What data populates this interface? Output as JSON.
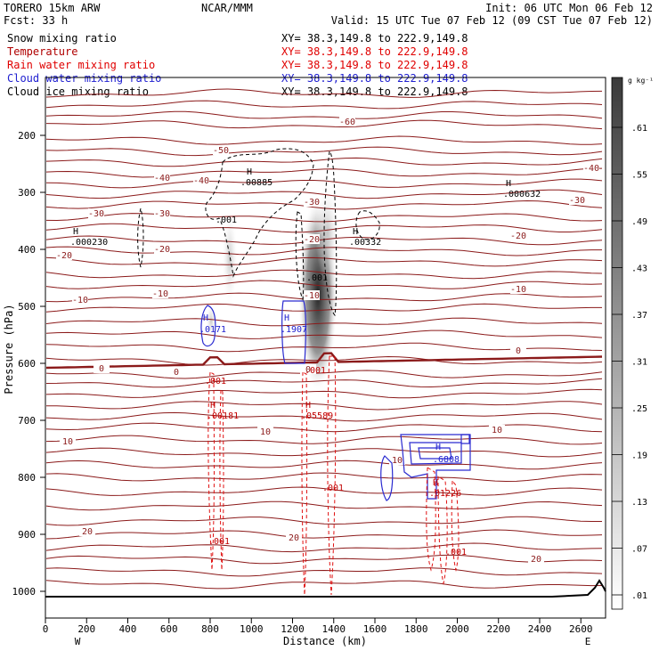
{
  "header": {
    "model": "TORERO  15km ARW",
    "center": "NCAR/MMM",
    "init": "Init: 06 UTC Mon 06 Feb 12",
    "fcst": "Fcst:   33 h",
    "valid": "Valid: 15 UTC Tue 07 Feb 12 (09 CST Tue 07 Feb 12)"
  },
  "legend": [
    {
      "label": "Snow mixing ratio",
      "xs": "XY=  38.3,149.8 to 222.9,149.8",
      "color": "#000000"
    },
    {
      "label": "Temperature",
      "xs": "XY=  38.3,149.8 to 222.9,149.8",
      "color": "#b00000"
    },
    {
      "label": "Rain water mixing ratio",
      "xs": "XY=  38.3,149.8 to 222.9,149.8",
      "color": "#e00000"
    },
    {
      "label": "Cloud water mixing ratio",
      "xs": "XY=  38.3,149.8 to 222.9,149.8",
      "color": "#2020d0"
    },
    {
      "label": "Cloud ice mixing ratio",
      "xs": "XY=  38.3,149.8 to 222.9,149.8",
      "color": "#000000"
    }
  ],
  "colorbar": {
    "unit": "g kg⁻¹",
    "ticks": [
      ".61",
      ".55",
      ".49",
      ".43",
      ".37",
      ".31",
      ".25",
      ".19",
      ".13",
      ".07",
      ".01"
    ]
  },
  "chart_data": {
    "type": "cross-section contour",
    "xlabel": "Distance (km)",
    "ylabel": "Pressure (hPa)",
    "x_ticks": [
      0,
      200,
      400,
      600,
      800,
      1000,
      1200,
      1400,
      1600,
      1800,
      2000,
      2200,
      2400,
      2600
    ],
    "y_ticks": [
      200,
      300,
      400,
      500,
      600,
      700,
      800,
      900,
      1000
    ],
    "x_ends": [
      "W",
      "E"
    ],
    "temperature_labels": [
      "-60",
      "-50",
      "-40",
      "-30",
      "-20",
      "-10",
      "0",
      "10",
      "20"
    ],
    "rain_labels": [
      ".001",
      ".001",
      ".001",
      ".001",
      ".001"
    ],
    "snow_labels": [
      ".001",
      ".001"
    ],
    "maxima": [
      {
        "field": "snow",
        "label": "H",
        "value": ".00885",
        "x_km": 930,
        "p_hpa": 285
      },
      {
        "field": "snow",
        "label": "H",
        "value": ".000632",
        "x_km": 2210,
        "p_hpa": 305
      },
      {
        "field": "snow",
        "label": "H",
        "value": ".000230",
        "x_km": 120,
        "p_hpa": 380
      },
      {
        "field": "snow",
        "label": "H",
        "value": ".00332",
        "x_km": 1570,
        "p_hpa": 380
      },
      {
        "field": "cloud_water",
        "label": "H",
        "value": ".0171",
        "x_km": 760,
        "p_hpa": 535
      },
      {
        "field": "cloud_water",
        "label": "H",
        "value": ".1907",
        "x_km": 1270,
        "p_hpa": 535
      },
      {
        "field": "cloud_water",
        "label": "H",
        "value": ".6808",
        "x_km": 1940,
        "p_hpa": 770
      },
      {
        "field": "rain",
        "label": "H",
        "value": ".00181",
        "x_km": 800,
        "p_hpa": 675
      },
      {
        "field": "rain",
        "label": "H",
        "value": ".05589",
        "x_km": 1300,
        "p_hpa": 675
      },
      {
        "field": "rain",
        "label": "H",
        "value": ".01226",
        "x_km": 1930,
        "p_hpa": 825
      }
    ]
  }
}
